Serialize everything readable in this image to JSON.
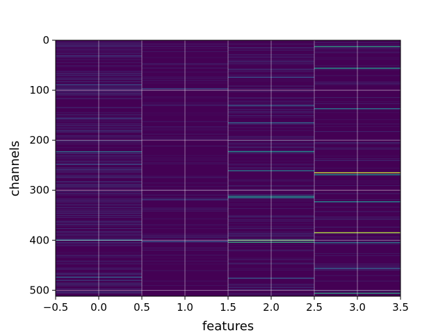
{
  "chart_data": {
    "type": "heatmap",
    "title": "",
    "xlabel": "features",
    "ylabel": "channels",
    "xlim": [
      -0.5,
      3.5
    ],
    "ylim": [
      512,
      0
    ],
    "rows": 512,
    "columns": [
      0,
      1,
      2,
      3
    ],
    "x_ticks": [
      "−0.5",
      "0.0",
      "0.5",
      "1.0",
      "1.5",
      "2.0",
      "2.5",
      "3.0",
      "3.5"
    ],
    "x_tick_values": [
      -0.5,
      0.0,
      0.5,
      1.0,
      1.5,
      2.0,
      2.5,
      3.0,
      3.5
    ],
    "y_ticks": [
      "0",
      "100",
      "200",
      "300",
      "400",
      "500"
    ],
    "y_tick_values": [
      0,
      100,
      200,
      300,
      400,
      500
    ],
    "grid": true,
    "colormap": "viridis",
    "background_color": "#440154",
    "highlights": [
      {
        "col": 0,
        "row": 222,
        "value": 0.35
      },
      {
        "col": 0,
        "row": 247,
        "value": 0.25
      },
      {
        "col": 0,
        "row": 399,
        "value": 0.42
      },
      {
        "col": 0,
        "row": 473,
        "value": 0.3
      },
      {
        "col": 0,
        "row": 88,
        "value": 0.22
      },
      {
        "col": 1,
        "row": 96,
        "value": 0.22
      },
      {
        "col": 1,
        "row": 402,
        "value": 0.25
      },
      {
        "col": 1,
        "row": 318,
        "value": 0.18
      },
      {
        "col": 2,
        "row": 73,
        "value": 0.25
      },
      {
        "col": 2,
        "row": 129,
        "value": 0.3
      },
      {
        "col": 2,
        "row": 164,
        "value": 0.32
      },
      {
        "col": 2,
        "row": 222,
        "value": 0.48
      },
      {
        "col": 2,
        "row": 260,
        "value": 0.4
      },
      {
        "col": 2,
        "row": 311,
        "value": 0.5
      },
      {
        "col": 2,
        "row": 314,
        "value": 0.45
      },
      {
        "col": 2,
        "row": 399,
        "value": 0.72
      },
      {
        "col": 2,
        "row": 403,
        "value": 0.6
      },
      {
        "col": 2,
        "row": 475,
        "value": 0.28
      },
      {
        "col": 3,
        "row": 12,
        "value": 0.55
      },
      {
        "col": 3,
        "row": 55,
        "value": 0.52
      },
      {
        "col": 3,
        "row": 136,
        "value": 0.4
      },
      {
        "col": 3,
        "row": 264,
        "value": 0.92
      },
      {
        "col": 3,
        "row": 268,
        "value": 0.5
      },
      {
        "col": 3,
        "row": 322,
        "value": 0.45
      },
      {
        "col": 3,
        "row": 384,
        "value": 0.88
      },
      {
        "col": 3,
        "row": 404,
        "value": 0.4
      },
      {
        "col": 3,
        "row": 455,
        "value": 0.3
      },
      {
        "col": 3,
        "row": 505,
        "value": 0.55
      }
    ]
  }
}
